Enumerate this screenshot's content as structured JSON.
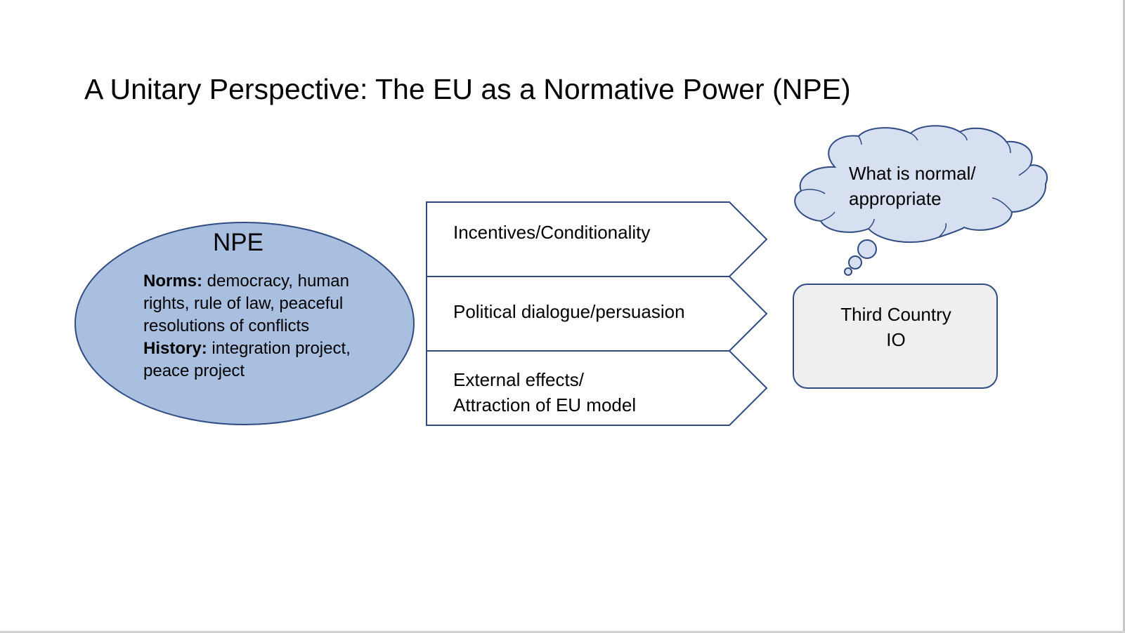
{
  "title": "A Unitary Perspective: The EU as a Normative Power (NPE)",
  "npe": {
    "heading": "NPE",
    "norms_label": "Norms:",
    "norms_text": " democracy, human",
    "norms_line2": "rights, rule of law, peaceful",
    "norms_line3": "resolutions of conflicts",
    "history_label": "History:",
    "history_text": " integration project,",
    "history_line2": "peace project"
  },
  "arrows": {
    "a1": "Incentives/Conditionality",
    "a2": "Political dialogue/persuasion",
    "a3_line1": "External effects/",
    "a3_line2": "Attraction of EU model"
  },
  "cloud": {
    "line1": "What is normal/",
    "line2": "appropriate"
  },
  "target": {
    "line1": "Third Country",
    "line2": "IO"
  },
  "colors": {
    "ellipse_fill": "#a9bfe0",
    "outline": "#2f4b84",
    "cloud_fill": "#d6e0f0",
    "box_fill": "#efefef",
    "box_stroke": "#2f4b84"
  }
}
